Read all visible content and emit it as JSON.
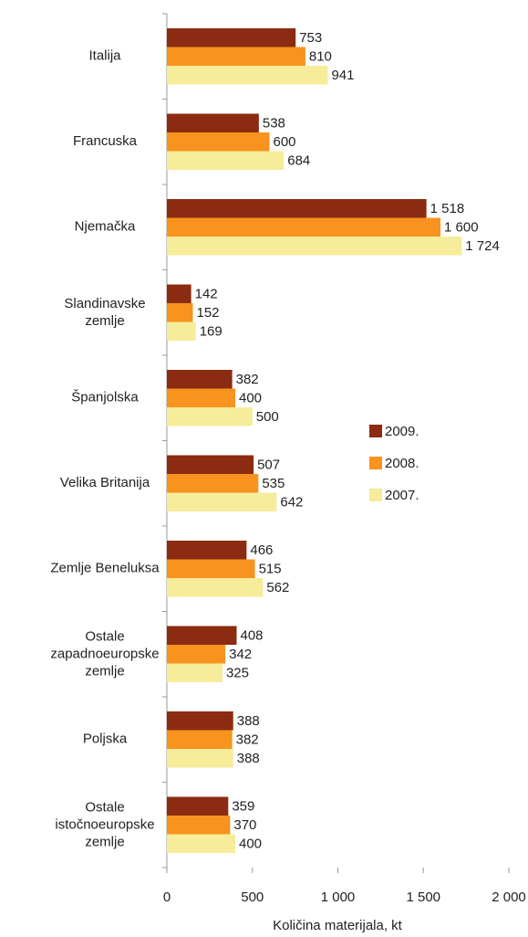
{
  "chart_data": {
    "type": "hbar",
    "xlabel": "Količina materijala, kt",
    "categories": [
      "Italija",
      "Francuska",
      "Njemačka",
      "Slandinavske\nzemlje",
      "Španjolska",
      "Velika Britanija",
      "Zemlje Beneluksa",
      "Ostale\nzapadnoeuropske\nzemlje",
      "Poljska",
      "Ostale\nistočnoeuropske\nzemlje"
    ],
    "series": [
      {
        "name": "2009.",
        "color": "#8b2c12",
        "values": [
          753,
          538,
          1518,
          142,
          382,
          507,
          466,
          408,
          388,
          359
        ],
        "value_labels": [
          "753",
          "538",
          "1 518",
          "142",
          "382",
          "507",
          "466",
          "408",
          "388",
          "359"
        ]
      },
      {
        "name": "2008.",
        "color": "#f7931e",
        "values": [
          810,
          600,
          1600,
          152,
          400,
          535,
          515,
          342,
          382,
          370
        ],
        "value_labels": [
          "810",
          "600",
          "1 600",
          "152",
          "400",
          "535",
          "515",
          "342",
          "382",
          "370"
        ]
      },
      {
        "name": "2007.",
        "color": "#f6ec9a",
        "values": [
          941,
          684,
          1724,
          169,
          500,
          642,
          562,
          325,
          388,
          400
        ],
        "value_labels": [
          "941",
          "684",
          "1 724",
          "169",
          "500",
          "642",
          "562",
          "325",
          "388",
          "400"
        ]
      }
    ],
    "xlim": [
      0,
      2000
    ],
    "xticks": [
      0,
      500,
      {
        "value": 1000,
        "label": "1 000"
      },
      {
        "value": 1500,
        "label": "1 500"
      },
      {
        "value": 2000,
        "label": "2 000"
      }
    ],
    "legend": "right",
    "grid": false
  }
}
